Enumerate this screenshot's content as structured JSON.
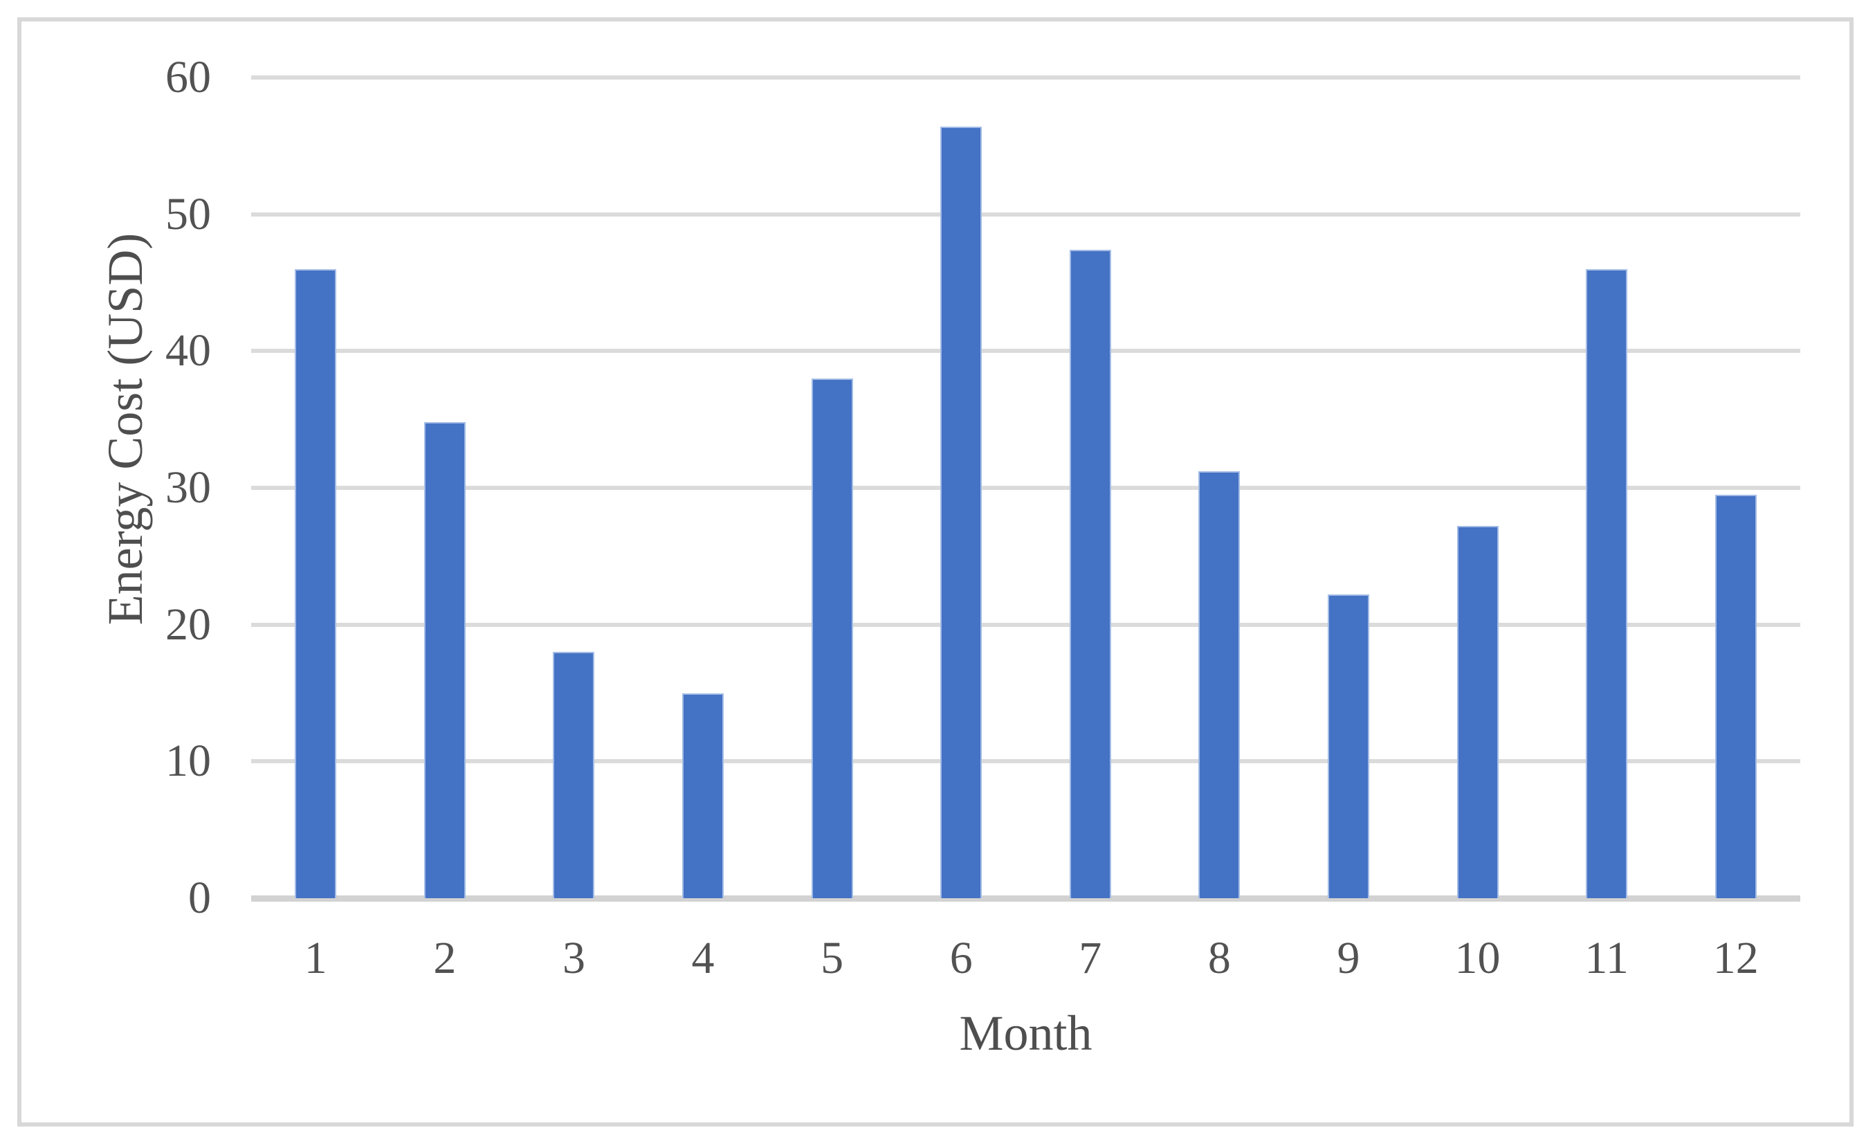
{
  "chart_data": {
    "type": "bar",
    "title": "",
    "xlabel": "Month",
    "ylabel": "Energy Cost (USD)",
    "categories": [
      "1",
      "2",
      "3",
      "4",
      "5",
      "6",
      "7",
      "8",
      "9",
      "10",
      "11",
      "12"
    ],
    "values": [
      46,
      34.8,
      18,
      15,
      38,
      56.4,
      47.4,
      31.2,
      22.2,
      27.2,
      46,
      29.5
    ],
    "series_name": "Energy Cost",
    "y_ticks": [
      0,
      10,
      20,
      30,
      40,
      50,
      60
    ],
    "ylim": [
      0,
      60
    ],
    "grid": "horizontal",
    "legend": "none",
    "bar_color": "#4472c4",
    "bar_edge_color": "#a3bce6",
    "gridline_color": "#dbdbdb",
    "axis_line_color": "#d2d2d2",
    "text_color": "#525252",
    "frame_border_color": "#d8d8d8",
    "background_color": "#ffffff"
  }
}
